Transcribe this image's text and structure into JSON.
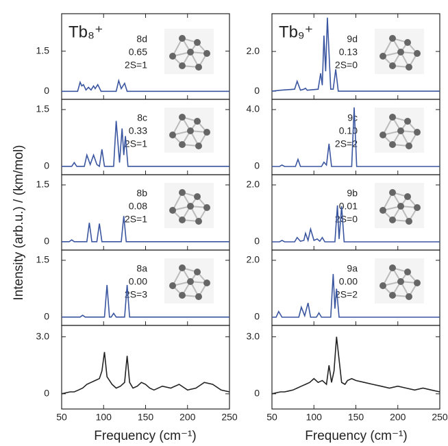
{
  "ylabel": "Intensity (arb.u.) / (km/mol)",
  "xlabel": [
    "Frequency (cm⁻¹)",
    "Frequency (cm⁻¹)"
  ],
  "chart_data": [
    {
      "type": "line",
      "title": "Tb₈⁺",
      "labels": [
        "8d",
        "0.65",
        "2S=1"
      ],
      "color": "#3a55a0",
      "x": [
        50,
        69,
        72,
        74,
        76,
        79,
        82,
        85,
        88,
        90,
        93,
        97,
        115,
        118,
        121,
        125,
        128,
        250
      ],
      "values": [
        0,
        0,
        0.34,
        0.2,
        0.25,
        0.05,
        0.15,
        0.05,
        0.2,
        0.1,
        0.25,
        0,
        0,
        0.4,
        0.1,
        0.3,
        0,
        0
      ],
      "xlim": [
        50,
        250
      ],
      "xticks": [
        50,
        100,
        150,
        200,
        250
      ],
      "ylim": [
        -0.3,
        2.9
      ],
      "yticks": [
        0,
        1.5
      ]
    },
    {
      "type": "line",
      "labels": [
        "8c",
        "0.33",
        "2S=1"
      ],
      "color": "#3a55a0",
      "x": [
        50,
        62,
        65,
        68,
        77,
        80,
        84,
        88,
        92,
        95,
        98,
        101,
        112,
        115,
        119,
        122,
        124,
        126,
        129,
        250
      ],
      "values": [
        0,
        0,
        0.1,
        0,
        0,
        0.3,
        0.05,
        0.3,
        0.05,
        0,
        0.45,
        0,
        0,
        1.2,
        0.1,
        1.0,
        0.3,
        0.8,
        0,
        0
      ],
      "xlim": [
        50,
        250
      ],
      "xticks": [
        50,
        100,
        150,
        200,
        250
      ],
      "ylim": [
        -0.22,
        1.77
      ],
      "yticks": [
        0,
        1.5
      ]
    },
    {
      "type": "line",
      "labels": [
        "8b",
        "0.08",
        "2S=1"
      ],
      "color": "#3a55a0",
      "x": [
        50,
        59,
        62,
        65,
        80,
        83,
        86,
        92,
        95,
        98,
        121,
        124,
        127,
        250
      ],
      "values": [
        0,
        0,
        0.05,
        0,
        0,
        0.5,
        0,
        0,
        0.48,
        0,
        0,
        0.68,
        0,
        0
      ],
      "xlim": [
        50,
        250
      ],
      "xticks": [
        50,
        100,
        150,
        200,
        250
      ],
      "ylim": [
        -0.22,
        1.77
      ],
      "yticks": [
        0,
        1.5
      ]
    },
    {
      "type": "line",
      "labels": [
        "8a",
        "0.00",
        "2S=3"
      ],
      "color": "#3a55a0",
      "x": [
        50,
        72,
        75,
        78,
        101,
        104,
        107,
        109,
        112,
        115,
        125,
        128,
        131,
        250
      ],
      "values": [
        0,
        0,
        0.05,
        0,
        0,
        0.85,
        0,
        0,
        0.1,
        0,
        0,
        0.85,
        0,
        0
      ],
      "xlim": [
        50,
        250
      ],
      "xticks": [
        50,
        100,
        150,
        200,
        250
      ],
      "ylim": [
        -0.22,
        1.77
      ],
      "yticks": [
        0,
        1.5
      ]
    },
    {
      "type": "line",
      "color": "#222222",
      "x": [
        50,
        55,
        60,
        65,
        70,
        75,
        80,
        85,
        90,
        95,
        98,
        101,
        104,
        110,
        115,
        120,
        125,
        128,
        131,
        135,
        140,
        145,
        150,
        155,
        160,
        170,
        180,
        190,
        200,
        210,
        220,
        230,
        240,
        250
      ],
      "values": [
        0,
        0.05,
        0.1,
        0.1,
        0.2,
        0.3,
        0.5,
        0.6,
        0.7,
        0.8,
        1.2,
        2.2,
        0.9,
        0.5,
        0.3,
        0.4,
        0.6,
        2.0,
        0.6,
        0.3,
        0.4,
        0.6,
        0.5,
        0.3,
        0.2,
        0.4,
        0.3,
        0.5,
        0.2,
        0.3,
        0.6,
        0.5,
        0.2,
        0.1
      ],
      "xlim": [
        50,
        250
      ],
      "xticks": [
        50,
        100,
        150,
        200,
        250
      ],
      "ylim": [
        -0.8,
        3.6
      ],
      "yticks": [
        0,
        {
          "value": 3,
          "label": "3.0"
        }
      ]
    },
    {
      "type": "line",
      "title": "Tb₉⁺",
      "labels": [
        "9d",
        "0.13",
        "2S=0"
      ],
      "color": "#3a55a0",
      "x": [
        50,
        60,
        77,
        80,
        84,
        88,
        90,
        92,
        105,
        108,
        110,
        112,
        114,
        116,
        120,
        123,
        126,
        129,
        250
      ],
      "values": [
        0,
        0.05,
        0.1,
        0.5,
        0.05,
        0.1,
        0.15,
        0.05,
        0.1,
        0.9,
        0.3,
        2.8,
        1.0,
        3.7,
        0.1,
        0.1,
        1.1,
        0,
        0
      ],
      "xlim": [
        50,
        250
      ],
      "xticks": [
        50,
        100,
        150,
        200,
        250
      ],
      "ylim": [
        -0.41,
        3.9
      ],
      "yticks": [
        0,
        {
          "value": 2,
          "label": "2.0"
        }
      ]
    },
    {
      "type": "line",
      "labels": [
        "9c",
        "0.10",
        "2S=2"
      ],
      "color": "#3a55a0",
      "x": [
        50,
        59,
        62,
        65,
        78,
        81,
        84,
        109,
        112,
        115,
        118,
        121,
        145,
        148,
        151,
        250
      ],
      "values": [
        0,
        0,
        0.1,
        0,
        0,
        0.5,
        0,
        0,
        0.3,
        0.1,
        1.6,
        0,
        0,
        4.15,
        0,
        0
      ],
      "xlim": [
        50,
        250
      ],
      "xticks": [
        50,
        100,
        150,
        200,
        250
      ],
      "ylim": [
        -0.58,
        4.72
      ],
      "yticks": [
        0,
        {
          "value": 4,
          "label": "4.0"
        }
      ]
    },
    {
      "type": "line",
      "labels": [
        "9b",
        "0.01",
        "2S=0"
      ],
      "color": "#3a55a0",
      "x": [
        50,
        59,
        62,
        65,
        77,
        80,
        84,
        88,
        90,
        93,
        96,
        100,
        104,
        107,
        110,
        113,
        125,
        128,
        130,
        133,
        136,
        250
      ],
      "values": [
        0,
        0,
        0.05,
        0,
        0,
        0.15,
        0.02,
        0.05,
        0.3,
        0.05,
        0.45,
        0.05,
        0.1,
        0.02,
        0.15,
        0,
        0,
        1.28,
        0.1,
        1.25,
        0,
        0
      ],
      "xlim": [
        50,
        250
      ],
      "xticks": [
        50,
        100,
        150,
        200,
        250
      ],
      "ylim": [
        -0.29,
        2.36
      ],
      "yticks": [
        0,
        {
          "value": 2,
          "label": "2.0"
        }
      ]
    },
    {
      "type": "line",
      "labels": [
        "9a",
        "0.00",
        "2S=2"
      ],
      "color": "#3a55a0",
      "x": [
        50,
        55,
        58,
        62,
        82,
        85,
        89,
        93,
        96,
        103,
        106,
        109,
        120,
        123,
        125,
        127,
        130,
        250
      ],
      "values": [
        0,
        0,
        0.2,
        0,
        0,
        0.35,
        0.05,
        0.5,
        0,
        0,
        0.15,
        0,
        0,
        1.52,
        0.3,
        1.0,
        0,
        0
      ],
      "xlim": [
        50,
        250
      ],
      "xticks": [
        50,
        100,
        150,
        200,
        250
      ],
      "ylim": [
        -0.29,
        2.36
      ],
      "yticks": [
        0,
        {
          "value": 2,
          "label": "2.0"
        }
      ]
    },
    {
      "type": "line",
      "color": "#222222",
      "x": [
        50,
        55,
        60,
        65,
        70,
        75,
        80,
        85,
        90,
        95,
        100,
        105,
        110,
        115,
        118,
        121,
        124,
        127,
        130,
        133,
        137,
        140,
        145,
        150,
        160,
        170,
        180,
        190,
        200,
        210,
        220,
        230,
        240,
        250
      ],
      "values": [
        0,
        0.05,
        0.1,
        0.1,
        0.15,
        0.2,
        0.3,
        0.4,
        0.5,
        0.6,
        0.8,
        0.6,
        0.7,
        0.5,
        1.5,
        0.6,
        1.2,
        3.0,
        1.8,
        0.6,
        0.5,
        0.7,
        0.8,
        0.7,
        0.6,
        0.5,
        0.4,
        0.3,
        0.4,
        0.3,
        0.2,
        0.3,
        0.2,
        0.1
      ],
      "xlim": [
        50,
        250
      ],
      "xticks": [
        50,
        100,
        150,
        200,
        250
      ],
      "ylim": [
        -0.8,
        3.6
      ],
      "yticks": [
        0,
        {
          "value": 3,
          "label": "3.0"
        }
      ]
    }
  ]
}
